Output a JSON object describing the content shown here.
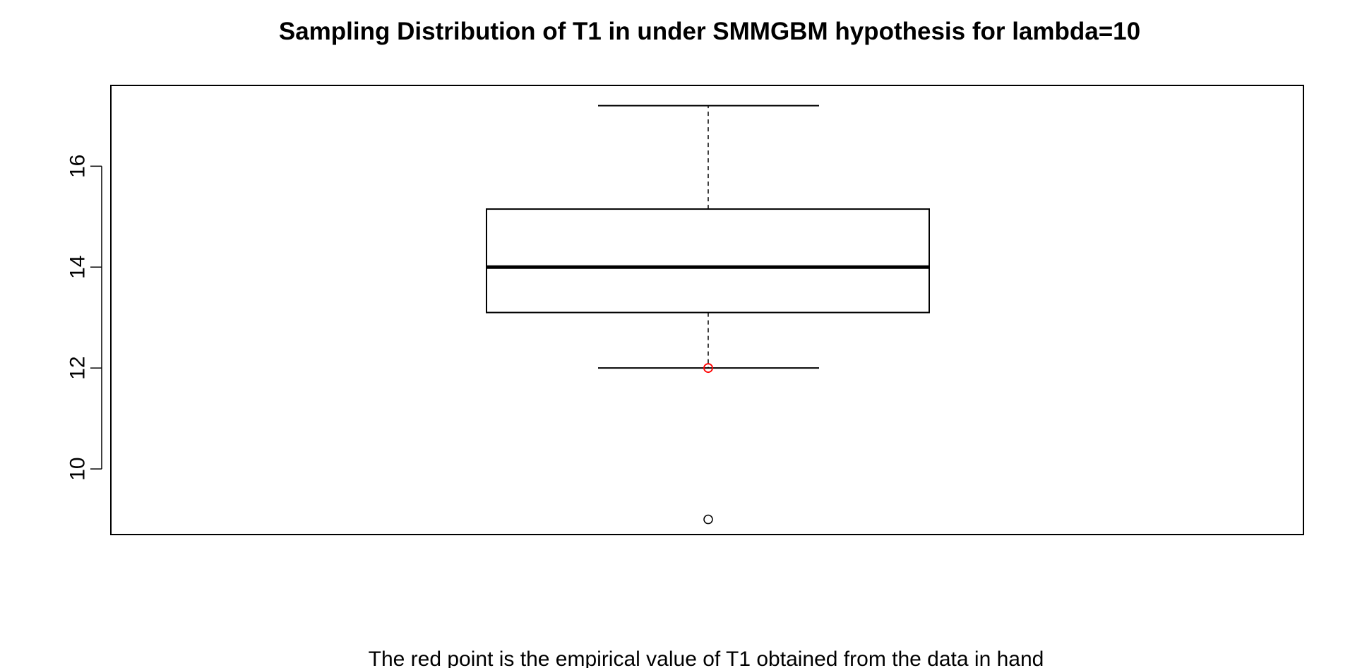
{
  "chart_data": {
    "type": "box",
    "title": "Sampling Distribution of T1 in under SMMGBM hypothesis for lambda=10",
    "xlabel": "The red point is the empirical value of T1 obtained from the data in hand",
    "ylabel": "",
    "ylim": [
      8.7,
      17.6
    ],
    "yticks": [
      10,
      12,
      14,
      16
    ],
    "grid": false,
    "box": {
      "lower_whisker": 12.0,
      "q1": 13.1,
      "median": 14.0,
      "q3": 15.15,
      "upper_whisker": 17.2
    },
    "outliers": [
      9.0
    ],
    "highlight_point": {
      "value": 12.0,
      "color": "#ff0000"
    },
    "colors": {
      "box": "#000000",
      "outlier": "#000000",
      "highlight": "#ff0000"
    }
  }
}
